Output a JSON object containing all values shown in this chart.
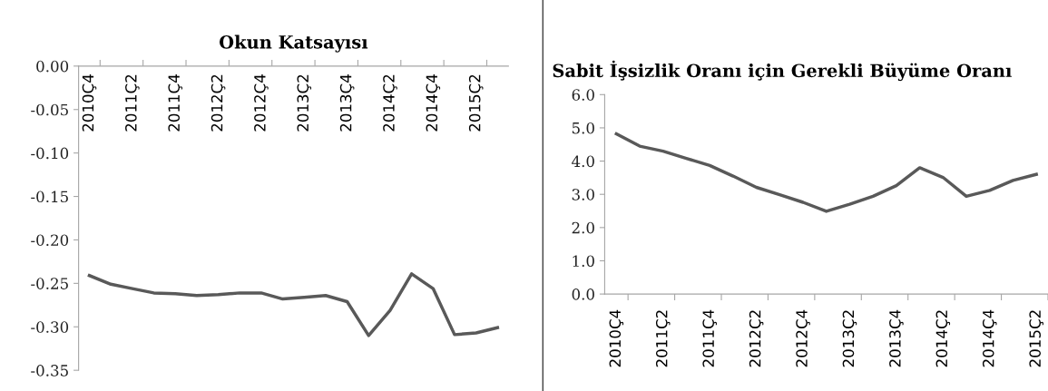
{
  "chart_data": [
    {
      "type": "line",
      "title": "Okun Katsayısı",
      "color": "#595959",
      "categories": [
        "2010Ç4",
        null,
        "2011Ç2",
        null,
        "2011Ç4",
        null,
        "2012Ç2",
        null,
        "2012Ç4",
        null,
        "2013Ç2",
        null,
        "2013Ç4",
        null,
        "2014Ç2",
        null,
        "2014Ç4",
        null,
        "2015Ç2",
        null
      ],
      "values": [
        -0.241,
        -0.251,
        -0.256,
        -0.261,
        -0.262,
        -0.264,
        -0.263,
        -0.261,
        -0.261,
        -0.268,
        -0.266,
        -0.264,
        -0.271,
        -0.31,
        -0.281,
        -0.239,
        -0.256,
        -0.309,
        -0.307,
        -0.301
      ],
      "ylim": [
        -0.35,
        0
      ],
      "yticks": [
        {
          "value": 0,
          "label": "0.00"
        },
        {
          "value": -0.05,
          "label": "-0.05"
        },
        {
          "value": -0.1,
          "label": "-0.10"
        },
        {
          "value": -0.15,
          "label": "-0.15"
        },
        {
          "value": -0.2,
          "label": "-0.20"
        },
        {
          "value": -0.25,
          "label": "-0.25"
        },
        {
          "value": -0.3,
          "label": "-0.30"
        },
        {
          "value": -0.35,
          "label": "-0.35"
        }
      ]
    },
    {
      "type": "line",
      "title": "Sabit İşsizlik Oranı için Gerekli Büyüme Oranı",
      "color": "#595959",
      "categories": [
        "2010Ç4",
        null,
        "2011Ç2",
        null,
        "2011Ç4",
        null,
        "2012Ç2",
        null,
        "2012Ç4",
        null,
        "2013Ç2",
        null,
        "2013Ç4",
        null,
        "2014Ç2",
        null,
        "2014Ç4",
        null,
        "2015Ç2"
      ],
      "values": [
        4.82,
        4.45,
        4.3,
        4.08,
        3.87,
        3.55,
        3.21,
        2.99,
        2.76,
        2.49,
        2.7,
        2.94,
        3.26,
        3.8,
        3.51,
        2.94,
        3.12,
        3.42,
        3.6
      ],
      "ylim": [
        0,
        6
      ],
      "yticks": [
        {
          "value": 0,
          "label": "0.0"
        },
        {
          "value": 1,
          "label": "1.0"
        },
        {
          "value": 2,
          "label": "2.0"
        },
        {
          "value": 3,
          "label": "3.0"
        },
        {
          "value": 4,
          "label": "4.0"
        },
        {
          "value": 5,
          "label": "5.0"
        },
        {
          "value": 6,
          "label": "6.0"
        }
      ]
    }
  ]
}
